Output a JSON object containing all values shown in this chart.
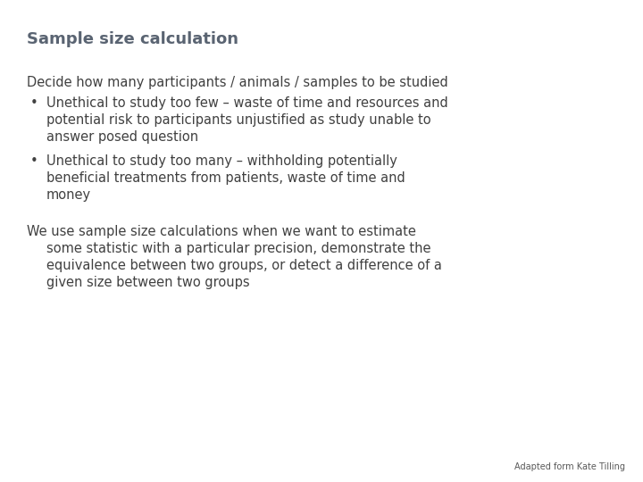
{
  "title": "Sample size calculation",
  "title_color": "#5a6472",
  "title_fontsize": 13,
  "background_color": "#ffffff",
  "text_color": "#404040",
  "body_fontsize": 10.5,
  "intro_line": "Decide how many participants / animals / samples to be studied",
  "bullet1_line1": "Unethical to study too few – waste of time and resources and",
  "bullet1_line2": "potential risk to participants unjustified as study unable to",
  "bullet1_line3": "answer posed question",
  "bullet2_line1": "Unethical to study too many – withholding potentially",
  "bullet2_line2": "beneficial treatments from patients, waste of time and",
  "bullet2_line3": "money",
  "footer_line1": "We use sample size calculations when we want to estimate",
  "footer_line2": "some statistic with a particular precision, demonstrate the",
  "footer_line3": "equivalence between two groups, or detect a difference of a",
  "footer_line4": "given size between two groups",
  "attribution": "Adapted form Kate Tilling",
  "attribution_fontsize": 7,
  "attribution_color": "#595959"
}
